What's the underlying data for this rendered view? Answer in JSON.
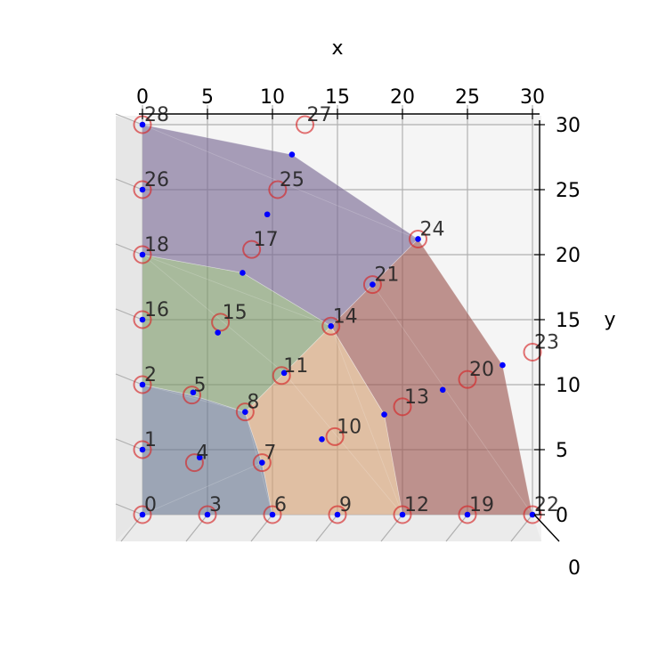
{
  "chart_data": {
    "type": "scatter",
    "view": "3d-top-down",
    "xlabel": "x",
    "ylabel": "y",
    "z_tick": "0",
    "xlim": [
      0,
      30
    ],
    "ylim": [
      0,
      30
    ],
    "x_ticks": [
      0,
      5,
      10,
      15,
      20,
      25,
      30
    ],
    "y_ticks": [
      0,
      5,
      10,
      15,
      20,
      25,
      30
    ],
    "grid": true,
    "colors": {
      "region_blue": "#6b7a92",
      "region_orange": "#d4a276",
      "region_green": "#7e9a6c",
      "region_purple": "#7b6c95",
      "region_red": "#9e5a55",
      "circle": "#d62728",
      "dot": "#0000ff"
    },
    "labeled_points": [
      {
        "label": "0",
        "x": 0,
        "y": 0
      },
      {
        "label": "1",
        "x": 0,
        "y": 5
      },
      {
        "label": "2",
        "x": 0,
        "y": 10
      },
      {
        "label": "3",
        "x": 5,
        "y": 0
      },
      {
        "label": "4",
        "x": 4,
        "y": 4
      },
      {
        "label": "5",
        "x": 3.8,
        "y": 9.2
      },
      {
        "label": "6",
        "x": 10,
        "y": 0
      },
      {
        "label": "7",
        "x": 9.2,
        "y": 4
      },
      {
        "label": "8",
        "x": 7.9,
        "y": 7.9
      },
      {
        "label": "9",
        "x": 15,
        "y": 0
      },
      {
        "label": "10",
        "x": 14.8,
        "y": 6
      },
      {
        "label": "11",
        "x": 10.7,
        "y": 10.7
      },
      {
        "label": "12",
        "x": 20,
        "y": 0
      },
      {
        "label": "13",
        "x": 20,
        "y": 8.3
      },
      {
        "label": "14",
        "x": 14.5,
        "y": 14.5
      },
      {
        "label": "15",
        "x": 6,
        "y": 14.8
      },
      {
        "label": "16",
        "x": 0,
        "y": 15
      },
      {
        "label": "17",
        "x": 8.4,
        "y": 20.4
      },
      {
        "label": "18",
        "x": 0,
        "y": 20
      },
      {
        "label": "19",
        "x": 25,
        "y": 0
      },
      {
        "label": "20",
        "x": 25,
        "y": 10.4
      },
      {
        "label": "21",
        "x": 17.7,
        "y": 17.7
      },
      {
        "label": "22",
        "x": 30,
        "y": 0
      },
      {
        "label": "23",
        "x": 30,
        "y": 12.5
      },
      {
        "label": "24",
        "x": 21.2,
        "y": 21.2
      },
      {
        "label": "25",
        "x": 10.4,
        "y": 25
      },
      {
        "label": "26",
        "x": 0,
        "y": 25
      },
      {
        "label": "27",
        "x": 12.5,
        "y": 30
      },
      {
        "label": "28",
        "x": 0,
        "y": 30
      }
    ],
    "blue_points": [
      {
        "x": 0,
        "y": 0
      },
      {
        "x": 5,
        "y": 0
      },
      {
        "x": 10,
        "y": 0
      },
      {
        "x": 15,
        "y": 0
      },
      {
        "x": 20,
        "y": 0
      },
      {
        "x": 25,
        "y": 0
      },
      {
        "x": 30,
        "y": 0
      },
      {
        "x": 0,
        "y": 5
      },
      {
        "x": 0,
        "y": 10
      },
      {
        "x": 0,
        "y": 15
      },
      {
        "x": 0,
        "y": 20
      },
      {
        "x": 0,
        "y": 25
      },
      {
        "x": 0,
        "y": 30
      },
      {
        "x": 4.4,
        "y": 4.4
      },
      {
        "x": 3.9,
        "y": 9.4
      },
      {
        "x": 9.2,
        "y": 4
      },
      {
        "x": 7.9,
        "y": 7.9
      },
      {
        "x": 13.8,
        "y": 5.8
      },
      {
        "x": 10.9,
        "y": 10.9
      },
      {
        "x": 18.6,
        "y": 7.7
      },
      {
        "x": 14.5,
        "y": 14.5
      },
      {
        "x": 5.8,
        "y": 14
      },
      {
        "x": 7.7,
        "y": 18.6
      },
      {
        "x": 17.7,
        "y": 17.7
      },
      {
        "x": 23.1,
        "y": 9.6
      },
      {
        "x": 27.7,
        "y": 11.5
      },
      {
        "x": 21.2,
        "y": 21.2
      },
      {
        "x": 9.6,
        "y": 23.1
      },
      {
        "x": 11.5,
        "y": 27.7
      }
    ],
    "regions": [
      {
        "color_key": "region_blue",
        "polygon": [
          [
            0,
            0
          ],
          [
            10,
            0
          ],
          [
            9.2,
            4
          ],
          [
            7.9,
            7.9
          ],
          [
            3.8,
            9.2
          ],
          [
            0,
            10
          ]
        ]
      },
      {
        "color_key": "region_orange",
        "polygon": [
          [
            10,
            0
          ],
          [
            20,
            0
          ],
          [
            18.6,
            7.7
          ],
          [
            14.5,
            14.5
          ],
          [
            10.9,
            10.9
          ],
          [
            7.9,
            7.9
          ],
          [
            9.2,
            4
          ]
        ]
      },
      {
        "color_key": "region_green",
        "polygon": [
          [
            0,
            10
          ],
          [
            3.8,
            9.2
          ],
          [
            7.9,
            7.9
          ],
          [
            10.9,
            10.9
          ],
          [
            14.5,
            14.5
          ],
          [
            7.7,
            18.6
          ],
          [
            0,
            20
          ]
        ]
      },
      {
        "color_key": "region_purple",
        "polygon": [
          [
            0,
            20
          ],
          [
            7.7,
            18.6
          ],
          [
            14.5,
            14.5
          ],
          [
            17.7,
            17.7
          ],
          [
            21.2,
            21.2
          ],
          [
            11.5,
            27.7
          ],
          [
            0,
            30
          ]
        ]
      },
      {
        "color_key": "region_red",
        "polygon": [
          [
            20,
            0
          ],
          [
            30,
            0
          ],
          [
            27.7,
            11.5
          ],
          [
            21.2,
            21.2
          ],
          [
            17.7,
            17.7
          ],
          [
            14.5,
            14.5
          ],
          [
            18.6,
            7.7
          ]
        ]
      }
    ]
  }
}
